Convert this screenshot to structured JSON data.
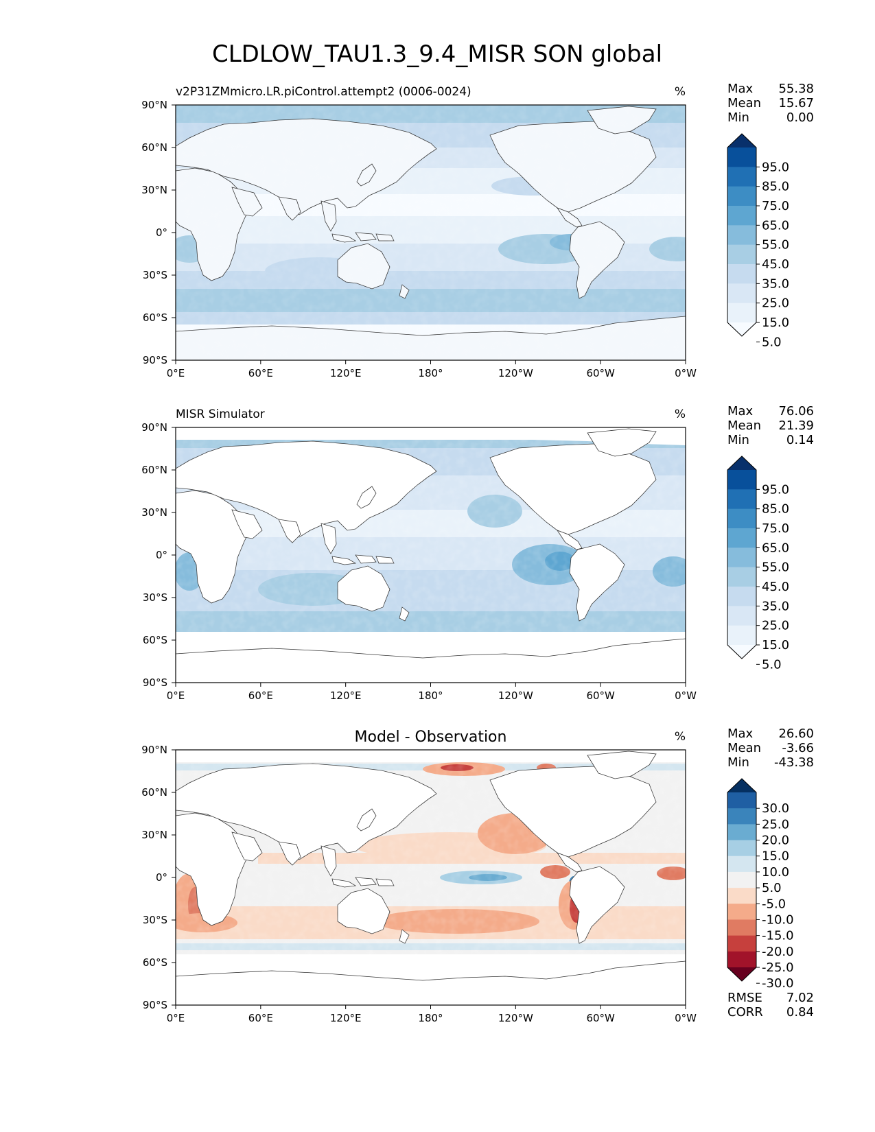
{
  "figure": {
    "title": "CLDLOW_TAU1.3_9.4_MISR SON global"
  },
  "axes": {
    "lon_ticks": [
      "0°E",
      "60°E",
      "120°E",
      "180°",
      "120°W",
      "60°W",
      "0°W"
    ],
    "lat_ticks": [
      "90°N",
      "60°N",
      "30°N",
      "0°",
      "30°S",
      "60°S",
      "90°S"
    ]
  },
  "chart_data": [
    {
      "type": "heatmap",
      "panel": "model",
      "title": "v2P31ZMmicro.LR.piControl.attempt2 (0006-0024)",
      "units": "%",
      "stats": [
        {
          "label": "Max",
          "value": "55.38"
        },
        {
          "label": "Mean",
          "value": "15.67"
        },
        {
          "label": "Min",
          "value": "0.00"
        }
      ],
      "colorbar": {
        "levels": [
          "95.0",
          "85.0",
          "75.0",
          "65.0",
          "55.0",
          "45.0",
          "35.0",
          "25.0",
          "15.0",
          "5.0"
        ],
        "colors": [
          "#08306b",
          "#08509b",
          "#2070b4",
          "#3d8dc4",
          "#5ea6d1",
          "#86bcdc",
          "#a8cee4",
          "#c6dbef",
          "#d9e7f5",
          "#e9f2fa",
          "#f7fbff"
        ]
      },
      "xlim": [
        0,
        360
      ],
      "ylim": [
        -90,
        90
      ]
    },
    {
      "type": "heatmap",
      "panel": "observation",
      "title": "MISR Simulator",
      "units": "%",
      "stats": [
        {
          "label": "Max",
          "value": "76.06"
        },
        {
          "label": "Mean",
          "value": "21.39"
        },
        {
          "label": "Min",
          "value": "0.14"
        }
      ],
      "colorbar": {
        "levels": [
          "95.0",
          "85.0",
          "75.0",
          "65.0",
          "55.0",
          "45.0",
          "35.0",
          "25.0",
          "15.0",
          "5.0"
        ],
        "colors": [
          "#08306b",
          "#08509b",
          "#2070b4",
          "#3d8dc4",
          "#5ea6d1",
          "#86bcdc",
          "#a8cee4",
          "#c6dbef",
          "#d9e7f5",
          "#e9f2fa",
          "#f7fbff"
        ]
      },
      "xlim": [
        0,
        360
      ],
      "ylim": [
        -90,
        90
      ]
    },
    {
      "type": "heatmap",
      "panel": "difference",
      "title": "Model - Observation",
      "units": "%",
      "stats": [
        {
          "label": "Max",
          "value": "26.60"
        },
        {
          "label": "Mean",
          "value": "-3.66"
        },
        {
          "label": "Min",
          "value": "-43.38"
        }
      ],
      "extra_stats": [
        {
          "label": "RMSE",
          "value": "7.02"
        },
        {
          "label": "CORR",
          "value": "0.84"
        }
      ],
      "colorbar": {
        "levels": [
          "30.0",
          "25.0",
          "20.0",
          "15.0",
          "10.0",
          "5.0",
          "-5.0",
          "-10.0",
          "-15.0",
          "-20.0",
          "-25.0",
          "-30.0"
        ],
        "colors": [
          "#053061",
          "#1f5fa3",
          "#3a84bb",
          "#6aacd1",
          "#a7cfe4",
          "#d4e6f0",
          "#f2f2f2",
          "#fadbc8",
          "#f4ab8a",
          "#e07b62",
          "#c6403d",
          "#a1132a",
          "#67001f"
        ]
      },
      "xlim": [
        0,
        360
      ],
      "ylim": [
        -90,
        90
      ]
    }
  ]
}
